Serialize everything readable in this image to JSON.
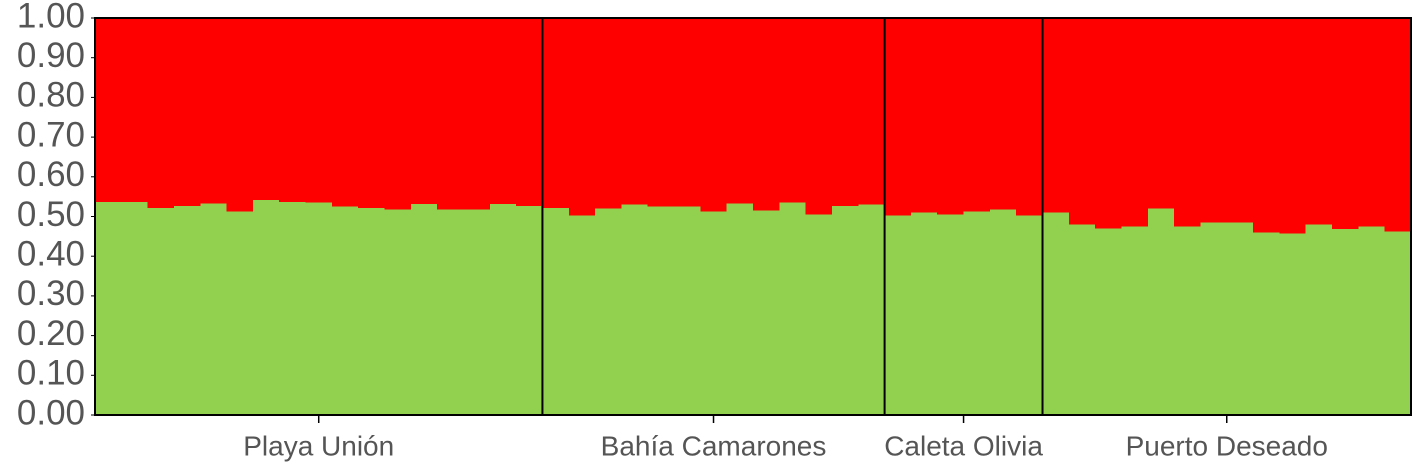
{
  "chart_data": {
    "type": "stacked_bar",
    "ylim": [
      0,
      1
    ],
    "yticks": [
      {
        "value": 0,
        "label": "0.00"
      },
      {
        "value": 0.1,
        "label": "0.10"
      },
      {
        "value": 0.2,
        "label": "0.20"
      },
      {
        "value": 0.3,
        "label": "0.30"
      },
      {
        "value": 0.4,
        "label": "0.40"
      },
      {
        "value": 0.5,
        "label": "0.50"
      },
      {
        "value": 0.6,
        "label": "0.60"
      },
      {
        "value": 0.7,
        "label": "0.70"
      },
      {
        "value": 0.8,
        "label": "0.80"
      },
      {
        "value": 0.9,
        "label": "0.90"
      },
      {
        "value": 1,
        "label": "1.00"
      }
    ],
    "groups": [
      {
        "label": "Playa Unión",
        "series": [
          {
            "color": "#92d050",
            "values": [
              0.537,
              0.537,
              0.522,
              0.527,
              0.533,
              0.513,
              0.541,
              0.537,
              0.535,
              0.525,
              0.522,
              0.518,
              0.532,
              0.518,
              0.518,
              0.532,
              0.527
            ]
          },
          {
            "color": "#ff0000",
            "values": [
              0.463,
              0.463,
              0.478,
              0.473,
              0.467,
              0.487,
              0.459,
              0.463,
              0.465,
              0.475,
              0.478,
              0.482,
              0.468,
              0.482,
              0.482,
              0.468,
              0.473
            ]
          }
        ]
      },
      {
        "label": "Bahía Camarones",
        "series": [
          {
            "color": "#92d050",
            "values": [
              0.522,
              0.502,
              0.52,
              0.53,
              0.525,
              0.525,
              0.513,
              0.533,
              0.515,
              0.535,
              0.505,
              0.527,
              0.53
            ]
          },
          {
            "color": "#ff0000",
            "values": [
              0.478,
              0.498,
              0.48,
              0.47,
              0.475,
              0.475,
              0.487,
              0.467,
              0.485,
              0.465,
              0.495,
              0.473,
              0.47
            ]
          }
        ]
      },
      {
        "label": "Caleta Olivia",
        "series": [
          {
            "color": "#92d050",
            "values": [
              0.503,
              0.51,
              0.505,
              0.513,
              0.518,
              0.503
            ]
          },
          {
            "color": "#ff0000",
            "values": [
              0.497,
              0.49,
              0.495,
              0.487,
              0.482,
              0.497
            ]
          }
        ]
      },
      {
        "label": "Puerto Deseado",
        "series": [
          {
            "color": "#92d050",
            "values": [
              0.51,
              0.48,
              0.47,
              0.475,
              0.52,
              0.475,
              0.485,
              0.485,
              0.46,
              0.457,
              0.48,
              0.468,
              0.475,
              0.462
            ]
          },
          {
            "color": "#ff0000",
            "values": [
              0.49,
              0.52,
              0.53,
              0.525,
              0.48,
              0.525,
              0.515,
              0.515,
              0.54,
              0.543,
              0.52,
              0.532,
              0.525,
              0.538
            ]
          }
        ]
      }
    ]
  }
}
